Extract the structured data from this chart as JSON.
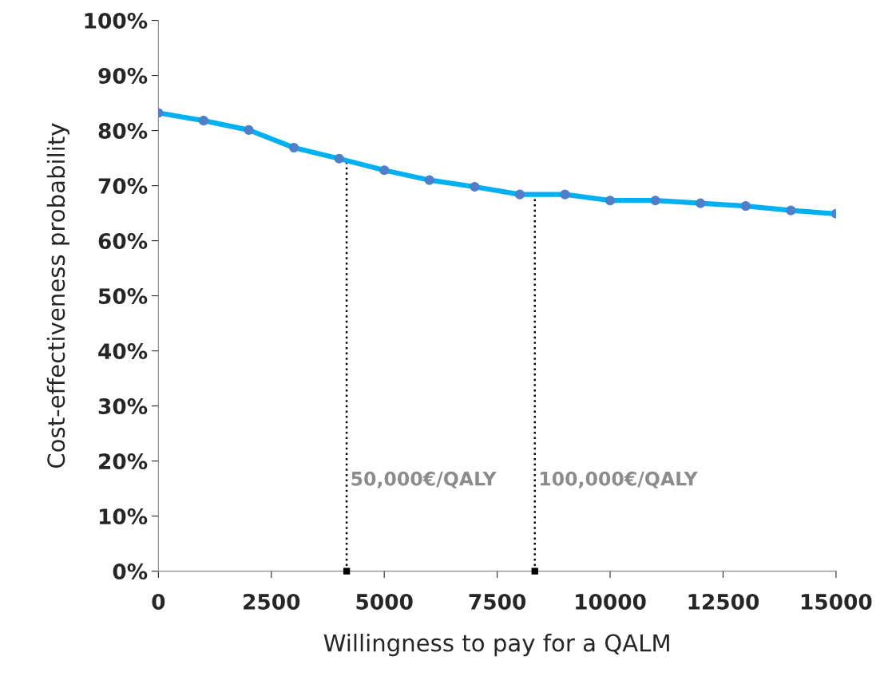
{
  "chart_data": {
    "type": "line",
    "xlabel": "Willingness to pay for a QALM",
    "ylabel": "Cost-effectiveness probability",
    "x": [
      0,
      1000,
      2000,
      3000,
      4000,
      5000,
      6000,
      7000,
      8000,
      9000,
      10000,
      11000,
      12000,
      13000,
      14000,
      15000
    ],
    "series": [
      {
        "color": "#00b0f0",
        "values": [
          83.2,
          81.8,
          80.1,
          76.9,
          74.9,
          72.8,
          71.0,
          69.8,
          68.4,
          68.4,
          67.3,
          67.3,
          66.8,
          66.3,
          65.5,
          64.9
        ]
      }
    ],
    "marker": "circle",
    "line_style": "solid",
    "grid": false,
    "xlim": [
      0,
      15000
    ],
    "xticks": [
      0,
      2500,
      5000,
      7500,
      10000,
      12500,
      15000
    ],
    "ylim": [
      0,
      100
    ],
    "yticks": [
      {
        "value": 0,
        "label": "0%"
      },
      {
        "value": 10,
        "label": "10%"
      },
      {
        "value": 20,
        "label": "20%"
      },
      {
        "value": 30,
        "label": "30%"
      },
      {
        "value": 40,
        "label": "40%"
      },
      {
        "value": 50,
        "label": "50%"
      },
      {
        "value": 60,
        "label": "60%"
      },
      {
        "value": 70,
        "label": "70%"
      },
      {
        "value": 80,
        "label": "80%"
      },
      {
        "value": 90,
        "label": "90%"
      },
      {
        "value": 100,
        "label": "100%"
      }
    ],
    "ref_lines": [
      {
        "axis": "x",
        "value": 4167,
        "label": "50,000€/QALY",
        "color": "#000000",
        "line_style": "dotted"
      },
      {
        "axis": "x",
        "value": 8333,
        "label": "100,000€/QALY",
        "color": "#000000",
        "line_style": "dotted"
      }
    ]
  }
}
